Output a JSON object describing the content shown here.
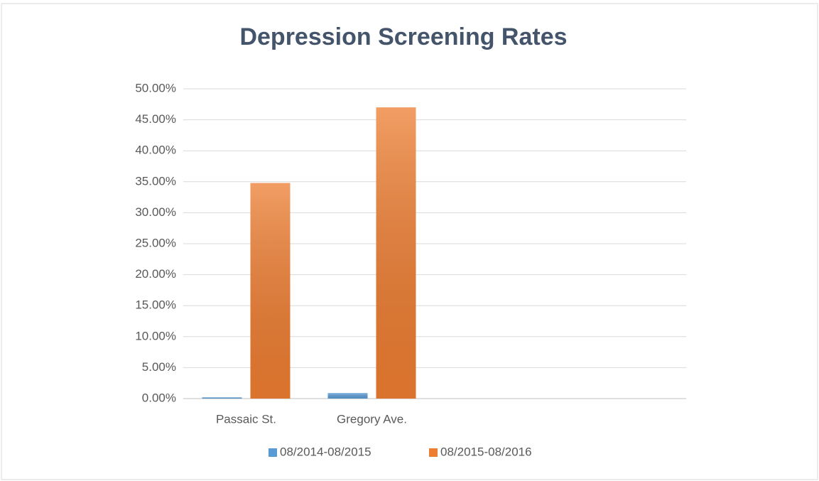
{
  "chart_data": {
    "type": "bar",
    "title": "Depression Screening Rates",
    "categories": [
      "Passaic St.",
      "Gregory Ave.",
      null,
      null
    ],
    "series": [
      {
        "name": "08/2014-08/2015",
        "color": "#5b9bd5",
        "values": [
          0.2,
          0.9,
          null,
          null
        ]
      },
      {
        "name": "08/2015-08/2016",
        "color": "#ed7d31",
        "values": [
          34.8,
          47.0,
          null,
          null
        ]
      }
    ],
    "ylim": [
      0,
      50
    ],
    "yticks": [
      {
        "value": 0,
        "label": "0.00%"
      },
      {
        "value": 5,
        "label": "5.00%"
      },
      {
        "value": 10,
        "label": "10.00%"
      },
      {
        "value": 15,
        "label": "15.00%"
      },
      {
        "value": 20,
        "label": "20.00%"
      },
      {
        "value": 25,
        "label": "25.00%"
      },
      {
        "value": 30,
        "label": "30.00%"
      },
      {
        "value": 35,
        "label": "35.00%"
      },
      {
        "value": 40,
        "label": "40.00%"
      },
      {
        "value": 45,
        "label": "45.00%"
      },
      {
        "value": 50,
        "label": "50.00%"
      }
    ],
    "grid": true,
    "legend": "bottom"
  }
}
